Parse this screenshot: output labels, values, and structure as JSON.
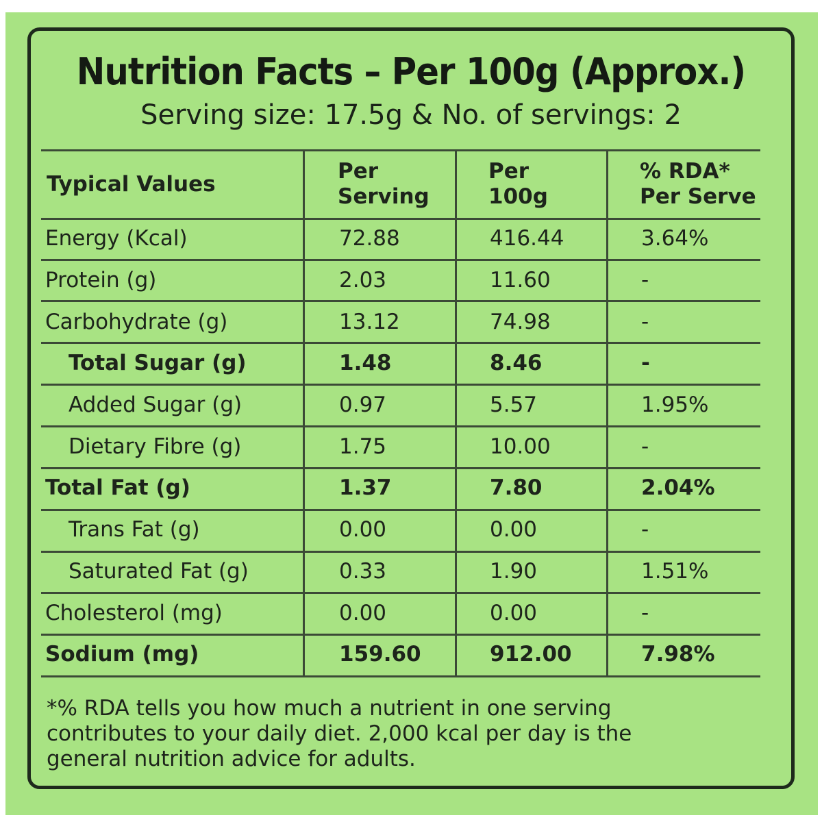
{
  "title": "Nutrition Facts – Per 100g (Approx.)",
  "subtitle": "Serving size: 17.5g & No. of servings: 2",
  "table": {
    "headers": {
      "nutrient": "Typical Values",
      "per_serving": [
        "Per",
        "Serving"
      ],
      "per_100g": [
        "Per",
        "100g"
      ],
      "rda": [
        "% RDA*",
        "Per Serve"
      ]
    },
    "rows": [
      {
        "name": "Energy (Kcal)",
        "per_serving": "72.88",
        "per_100g": "416.44",
        "rda": "3.64%"
      },
      {
        "name": "Protein (g)",
        "per_serving": "2.03",
        "per_100g": "11.60",
        "rda": "-"
      },
      {
        "name": "Carbohydrate (g)",
        "per_serving": "13.12",
        "per_100g": "74.98",
        "rda": "-"
      },
      {
        "name": "Total Sugar (g)",
        "per_serving": "1.48",
        "per_100g": "8.46",
        "rda": "-"
      },
      {
        "name": "Added Sugar (g)",
        "per_serving": "0.97",
        "per_100g": "5.57",
        "rda": "1.95%"
      },
      {
        "name": "Dietary Fibre (g)",
        "per_serving": "1.75",
        "per_100g": "10.00",
        "rda": "-"
      },
      {
        "name": "Total Fat (g)",
        "per_serving": "1.37",
        "per_100g": "7.80",
        "rda": "2.04%"
      },
      {
        "name": "Trans Fat (g)",
        "per_serving": "0.00",
        "per_100g": "0.00",
        "rda": "-"
      },
      {
        "name": "Saturated Fat (g)",
        "per_serving": "0.33",
        "per_100g": "1.90",
        "rda": "1.51%"
      },
      {
        "name": "Cholesterol (mg)",
        "per_serving": "0.00",
        "per_100g": "0.00",
        "rda": "-"
      },
      {
        "name": "Sodium (mg)",
        "per_serving": "159.60",
        "per_100g": "912.00",
        "rda": "7.98%"
      }
    ]
  },
  "footnote": {
    "line1": "*% RDA tells you how much a nutrient in one serving",
    "line2": "contributes to your daily diet. 2,000 kcal per day is the",
    "line3": "general nutrition advice for adults."
  },
  "colors": {
    "background": "#a8e383",
    "border": "#1e2a1c",
    "text": "#1d241b"
  }
}
